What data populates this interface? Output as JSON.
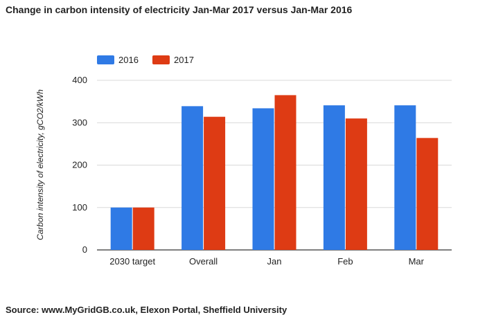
{
  "title": "Change in carbon intensity of electricity Jan-Mar 2017 versus Jan-Mar 2016",
  "source": "Source: www.MyGridGB.co.uk, Elexon Portal, Sheffield University",
  "colors": {
    "2016": "#2f7ae5",
    "2017": "#de3b14",
    "grid": "#d9d9d9",
    "axis": "#333333"
  },
  "chart_data": {
    "type": "bar",
    "title": "Change in carbon intensity of electricity Jan-Mar 2017 versus Jan-Mar 2016",
    "xlabel": "",
    "ylabel": "Carbon intensity of electricity, gCO2/kWh",
    "categories": [
      "2030 target",
      "Overall",
      "Jan",
      "Feb",
      "Mar"
    ],
    "series": [
      {
        "name": "2016",
        "values": [
          100,
          339,
          334,
          341,
          341
        ]
      },
      {
        "name": "2017",
        "values": [
          100,
          314,
          365,
          310,
          264
        ]
      }
    ],
    "ylim": [
      0,
      400
    ],
    "yticks": [
      "0",
      "100",
      "200",
      "300",
      "400"
    ],
    "grid": true,
    "legend": "top-left"
  }
}
